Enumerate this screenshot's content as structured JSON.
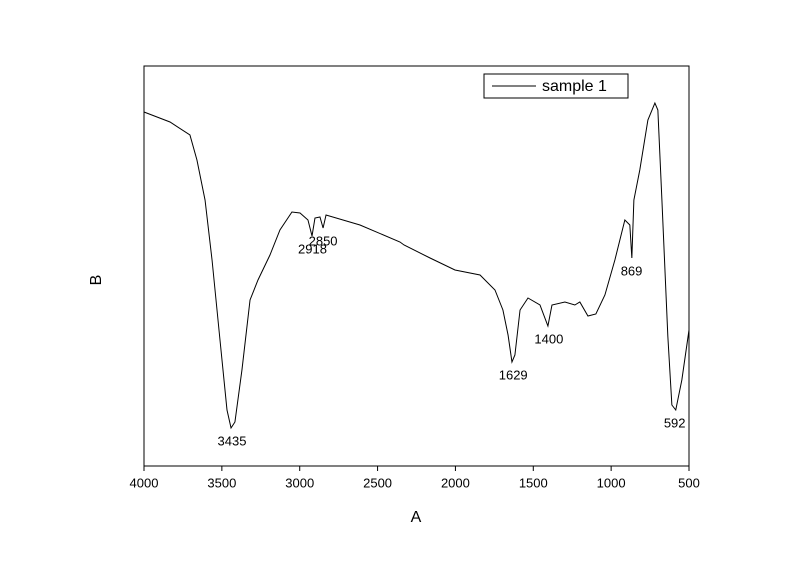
{
  "chart_data": {
    "type": "line",
    "xlabel": "A",
    "ylabel": "B",
    "xlim": [
      4000,
      500
    ],
    "xticks": [
      4000,
      3500,
      3000,
      2500,
      2000,
      1500,
      1000,
      500
    ],
    "ylim": [
      0,
      100
    ],
    "legend": "upper right",
    "series": [
      {
        "name": "sample 1",
        "color": "#000000",
        "x": [
          4000,
          3833,
          3705,
          3660,
          3608,
          3563,
          3512,
          3467,
          3441,
          3416,
          3371,
          3319,
          3268,
          3191,
          3127,
          3050,
          2998,
          2947,
          2921,
          2902,
          2870,
          2850,
          2831,
          2613,
          2356,
          2330,
          2163,
          2003,
          1842,
          1746,
          1695,
          1662,
          1637,
          1618,
          1585,
          1534,
          1457,
          1406,
          1380,
          1297,
          1233,
          1201,
          1149,
          1098,
          1040,
          976,
          912,
          880,
          867,
          854,
          816,
          764,
          719,
          700,
          674,
          636,
          610,
          585,
          546,
          500
        ],
        "values": [
          88.5,
          86,
          82.75,
          76.5,
          66.5,
          51.5,
          31.5,
          14,
          9.5,
          11,
          24,
          41.5,
          46.5,
          52.75,
          59,
          63.5,
          63.25,
          61.5,
          57.5,
          62,
          62.25,
          59.5,
          62.75,
          60.25,
          56,
          55.25,
          52,
          49,
          47.75,
          44,
          39,
          32.75,
          26,
          27.75,
          39,
          42,
          40.25,
          35,
          40.25,
          41,
          40.25,
          41,
          37.5,
          38,
          42.75,
          51.5,
          61.5,
          60.25,
          52,
          66.5,
          74,
          86.5,
          90.75,
          89,
          66.5,
          32.5,
          15.25,
          14,
          21.5,
          34
        ]
      }
    ],
    "annotations": [
      {
        "text": "3435",
        "x": 3435,
        "y": 9.5
      },
      {
        "text": "2918",
        "x": 2918,
        "y": 57.5
      },
      {
        "text": "2850",
        "x": 2850,
        "y": 59.5
      },
      {
        "text": "1629",
        "x": 1629,
        "y": 26
      },
      {
        "text": "1400",
        "x": 1400,
        "y": 35
      },
      {
        "text": "869",
        "x": 869,
        "y": 52
      },
      {
        "text": "592",
        "x": 592,
        "y": 14
      }
    ]
  }
}
